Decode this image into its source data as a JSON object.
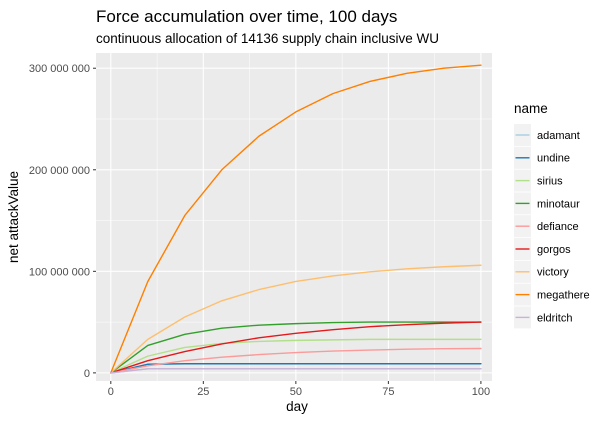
{
  "chart_data": {
    "type": "line",
    "title": "Force accumulation over time, 100 days",
    "subtitle": "continuous allocation of 14136 supply chain inclusive WU",
    "xlabel": "day",
    "ylabel": "net attackValue",
    "xlim": [
      -4,
      103
    ],
    "ylim": [
      -8000000,
      315000000
    ],
    "x_ticks": [
      0,
      25,
      50,
      75,
      100
    ],
    "x_tick_labels": [
      "0",
      "25",
      "50",
      "75",
      "100"
    ],
    "y_ticks": [
      0,
      100000000,
      200000000,
      300000000
    ],
    "y_tick_labels": [
      "0",
      "100 000 000",
      "200 000 000",
      "300 000 000"
    ],
    "grid": true,
    "panel_background": "#ebebeb",
    "legend_title": "name",
    "legend_position": "right",
    "x": [
      0,
      10,
      20,
      30,
      40,
      50,
      60,
      70,
      80,
      90,
      100
    ],
    "series": [
      {
        "name": "adamant",
        "color": "#a6cee3",
        "values": [
          0,
          4000000,
          4000000,
          4000000,
          4000000,
          4000000,
          4000000,
          4000000,
          4000000,
          4000000,
          4000000
        ]
      },
      {
        "name": "undine",
        "color": "#1f78b4",
        "values": [
          0,
          8500000,
          9000000,
          9000000,
          9000000,
          9000000,
          9000000,
          9000000,
          9000000,
          9000000,
          9000000
        ]
      },
      {
        "name": "sirius",
        "color": "#b2df8a",
        "values": [
          0,
          16500000,
          25000000,
          29000000,
          31000000,
          32000000,
          32500000,
          33000000,
          33000000,
          33000000,
          33000000
        ]
      },
      {
        "name": "minotaur",
        "color": "#33a02c",
        "values": [
          0,
          27000000,
          38000000,
          44000000,
          47000000,
          48500000,
          49500000,
          50000000,
          50000000,
          50000000,
          50000000
        ]
      },
      {
        "name": "defiance",
        "color": "#fb9a99",
        "values": [
          0,
          7000000,
          12000000,
          15500000,
          18000000,
          20000000,
          21500000,
          22500000,
          23300000,
          23800000,
          24000000
        ]
      },
      {
        "name": "gorgos",
        "color": "#e31a1c",
        "values": [
          0,
          12000000,
          21000000,
          28500000,
          34500000,
          39000000,
          42500000,
          45500000,
          47500000,
          49000000,
          50000000
        ]
      },
      {
        "name": "victory",
        "color": "#fdbf6f",
        "values": [
          0,
          33000000,
          55000000,
          71000000,
          82000000,
          90000000,
          95500000,
          99500000,
          102500000,
          104500000,
          106000000
        ]
      },
      {
        "name": "megathere",
        "color": "#ff7f00",
        "values": [
          0,
          90000000,
          155000000,
          200000000,
          233000000,
          257000000,
          275000000,
          287000000,
          295000000,
          300000000,
          303000000
        ]
      },
      {
        "name": "eldritch",
        "color": "#cab2d6",
        "values": [
          0,
          4000000,
          4000000,
          4000000,
          4000000,
          4000000,
          4000000,
          4000000,
          4000000,
          4000000,
          4000000
        ]
      }
    ]
  }
}
